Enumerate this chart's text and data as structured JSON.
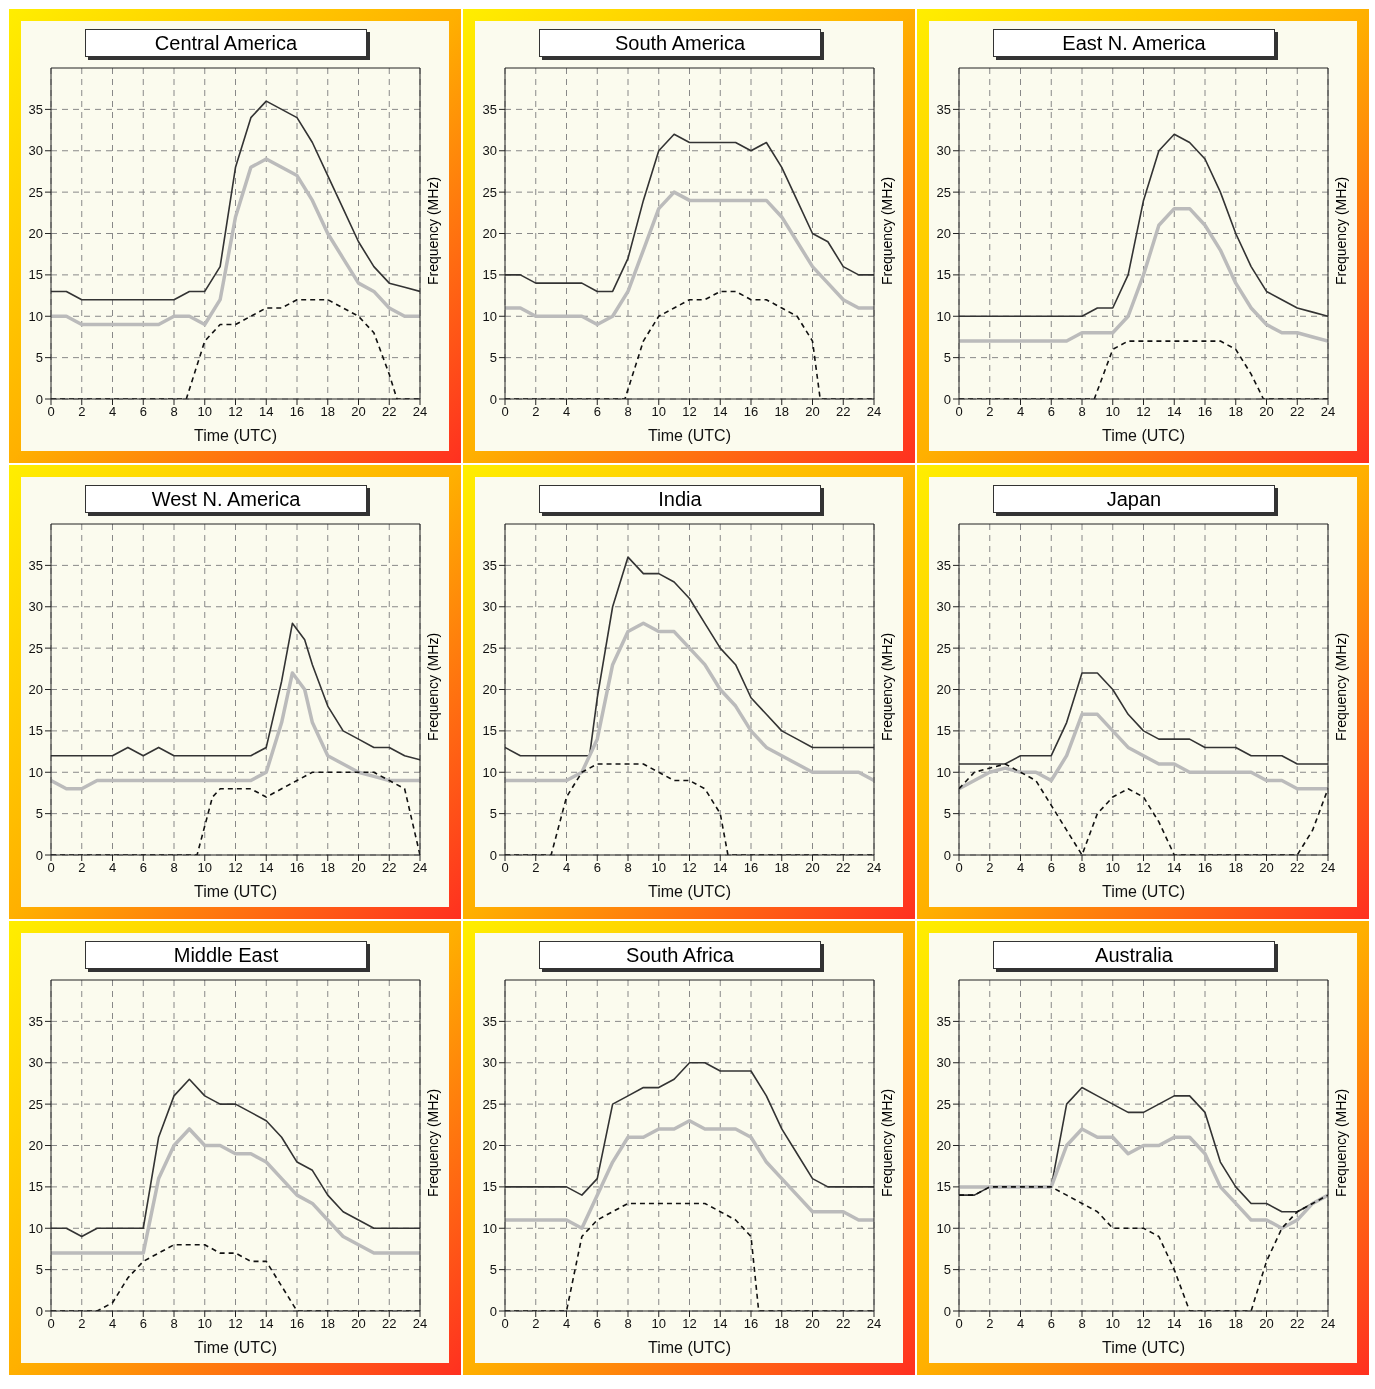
{
  "chart_data": [
    {
      "type": "line",
      "title": "Central America",
      "xlabel": "Time (UTC)",
      "ylabel": "Frequency (MHz)",
      "xlim": [
        0,
        24
      ],
      "ylim": [
        0,
        40
      ],
      "xticks": [
        0,
        2,
        4,
        6,
        8,
        10,
        12,
        14,
        16,
        18,
        20,
        22,
        24
      ],
      "yticks": [
        0,
        5,
        10,
        15,
        20,
        25,
        30,
        35
      ],
      "grid": true,
      "marker": "none",
      "series": [
        {
          "color": "#333333",
          "line_style": "solid",
          "x": [
            0,
            1,
            2,
            3,
            4,
            5,
            6,
            7,
            8,
            9,
            10,
            11,
            12,
            13,
            14,
            15,
            16,
            17,
            18,
            19,
            20,
            21,
            22,
            23,
            24
          ],
          "values": [
            13,
            13,
            12,
            12,
            12,
            12,
            12,
            12,
            12,
            13,
            13,
            16,
            28,
            34,
            36,
            35,
            34,
            31,
            27,
            23,
            19,
            16,
            14,
            13.5,
            13
          ]
        },
        {
          "color": "#bbbbbb",
          "line_style": "solid",
          "x": [
            0,
            1,
            2,
            3,
            4,
            5,
            6,
            7,
            8,
            9,
            10,
            11,
            12,
            13,
            14,
            15,
            16,
            17,
            18,
            19,
            20,
            21,
            22,
            23,
            24
          ],
          "values": [
            10,
            10,
            9,
            9,
            9,
            9,
            9,
            9,
            10,
            10,
            9,
            12,
            22,
            28,
            29,
            28,
            27,
            24,
            20,
            17,
            14,
            13,
            11,
            10,
            10
          ]
        },
        {
          "color": "#111111",
          "line_style": "dashed",
          "x": [
            0,
            8.8,
            10,
            11,
            12,
            13,
            14,
            15,
            16,
            17,
            18,
            19,
            20,
            21,
            22,
            22.5,
            24
          ],
          "values": [
            0,
            0,
            7,
            9,
            9,
            10,
            11,
            11,
            12,
            12,
            12,
            11,
            10,
            8,
            3,
            0,
            0
          ]
        }
      ]
    },
    {
      "type": "line",
      "title": "South America",
      "xlabel": "Time (UTC)",
      "ylabel": "Frequency (MHz)",
      "xlim": [
        0,
        24
      ],
      "ylim": [
        0,
        40
      ],
      "xticks": [
        0,
        2,
        4,
        6,
        8,
        10,
        12,
        14,
        16,
        18,
        20,
        22,
        24
      ],
      "yticks": [
        0,
        5,
        10,
        15,
        20,
        25,
        30,
        35
      ],
      "grid": true,
      "marker": "none",
      "series": [
        {
          "color": "#333333",
          "line_style": "solid",
          "x": [
            0,
            1,
            2,
            3,
            4,
            5,
            6,
            7,
            8,
            9,
            10,
            11,
            12,
            13,
            14,
            15,
            16,
            17,
            18,
            19,
            20,
            21,
            22,
            23,
            24
          ],
          "values": [
            15,
            15,
            14,
            14,
            14,
            14,
            13,
            13,
            17,
            24,
            30,
            32,
            31,
            31,
            31,
            31,
            30,
            31,
            28,
            24,
            20,
            19,
            16,
            15,
            15
          ]
        },
        {
          "color": "#bbbbbb",
          "line_style": "solid",
          "x": [
            0,
            1,
            2,
            3,
            4,
            5,
            6,
            7,
            8,
            9,
            10,
            11,
            12,
            13,
            14,
            15,
            16,
            17,
            18,
            19,
            20,
            21,
            22,
            23,
            24
          ],
          "values": [
            11,
            11,
            10,
            10,
            10,
            10,
            9,
            10,
            13,
            18,
            23,
            25,
            24,
            24,
            24,
            24,
            24,
            24,
            22,
            19,
            16,
            14,
            12,
            11,
            11
          ]
        },
        {
          "color": "#111111",
          "line_style": "dashed",
          "x": [
            0,
            7.8,
            9,
            10,
            11,
            12,
            13,
            14,
            15,
            16,
            17,
            18,
            19,
            20,
            20.5,
            24
          ],
          "values": [
            0,
            0,
            7,
            10,
            11,
            12,
            12,
            13,
            13,
            12,
            12,
            11,
            10,
            7,
            0,
            0
          ]
        }
      ]
    },
    {
      "type": "line",
      "title": "East N. America",
      "xlabel": "Time (UTC)",
      "ylabel": "Frequency (MHz)",
      "xlim": [
        0,
        24
      ],
      "ylim": [
        0,
        40
      ],
      "xticks": [
        0,
        2,
        4,
        6,
        8,
        10,
        12,
        14,
        16,
        18,
        20,
        22,
        24
      ],
      "yticks": [
        0,
        5,
        10,
        15,
        20,
        25,
        30,
        35
      ],
      "grid": true,
      "marker": "none",
      "series": [
        {
          "color": "#333333",
          "line_style": "solid",
          "x": [
            0,
            8,
            9,
            10,
            11,
            12,
            13,
            14,
            15,
            16,
            17,
            18,
            19,
            20,
            21,
            22,
            23,
            24
          ],
          "values": [
            10,
            10,
            11,
            11,
            15,
            24,
            30,
            32,
            31,
            29,
            25,
            20,
            16,
            13,
            12,
            11,
            10.5,
            10
          ]
        },
        {
          "color": "#bbbbbb",
          "line_style": "solid",
          "x": [
            0,
            7,
            8,
            9,
            10,
            11,
            12,
            13,
            14,
            15,
            16,
            17,
            18,
            19,
            20,
            21,
            22,
            23,
            24
          ],
          "values": [
            7,
            7,
            8,
            8,
            8,
            10,
            15,
            21,
            23,
            23,
            21,
            18,
            14,
            11,
            9,
            8,
            8,
            7.5,
            7
          ]
        },
        {
          "color": "#111111",
          "line_style": "dashed",
          "x": [
            0,
            8.8,
            10,
            11,
            17,
            18,
            19,
            19.8,
            24
          ],
          "values": [
            0,
            0,
            6,
            7,
            7,
            6,
            3,
            0,
            0
          ]
        }
      ]
    },
    {
      "type": "line",
      "title": "West N. America",
      "xlabel": "Time (UTC)",
      "ylabel": "Frequency (MHz)",
      "xlim": [
        0,
        24
      ],
      "ylim": [
        0,
        40
      ],
      "xticks": [
        0,
        2,
        4,
        6,
        8,
        10,
        12,
        14,
        16,
        18,
        20,
        22,
        24
      ],
      "yticks": [
        0,
        5,
        10,
        15,
        20,
        25,
        30,
        35
      ],
      "grid": true,
      "marker": "none",
      "series": [
        {
          "color": "#333333",
          "line_style": "solid",
          "x": [
            0,
            4,
            5,
            6,
            7,
            8,
            13,
            14,
            15,
            15.7,
            16.5,
            17,
            18,
            19,
            20,
            21,
            22,
            23,
            24
          ],
          "values": [
            12,
            12,
            13,
            12,
            13,
            12,
            12,
            13,
            21,
            28,
            26,
            23,
            18,
            15,
            14,
            13,
            13,
            12,
            11.5
          ]
        },
        {
          "color": "#bbbbbb",
          "line_style": "solid",
          "x": [
            0,
            1,
            2,
            3,
            13,
            14,
            15,
            15.7,
            16.5,
            17,
            18,
            19,
            20,
            21,
            22,
            24
          ],
          "values": [
            9,
            8,
            8,
            9,
            9,
            10,
            16,
            22,
            20,
            16,
            12,
            11,
            10,
            9.5,
            9,
            9
          ]
        },
        {
          "color": "#111111",
          "line_style": "dashed",
          "x": [
            0,
            9.5,
            10.5,
            11,
            13,
            14,
            15,
            16,
            17,
            21,
            22,
            23,
            24
          ],
          "values": [
            0,
            0,
            7,
            8,
            8,
            7,
            8,
            9,
            10,
            10,
            9,
            8,
            0
          ]
        }
      ]
    },
    {
      "type": "line",
      "title": "India",
      "xlabel": "Time (UTC)",
      "ylabel": "Frequency (MHz)",
      "xlim": [
        0,
        24
      ],
      "ylim": [
        0,
        40
      ],
      "xticks": [
        0,
        2,
        4,
        6,
        8,
        10,
        12,
        14,
        16,
        18,
        20,
        22,
        24
      ],
      "yticks": [
        0,
        5,
        10,
        15,
        20,
        25,
        30,
        35
      ],
      "grid": true,
      "marker": "none",
      "series": [
        {
          "color": "#333333",
          "line_style": "solid",
          "x": [
            0,
            1,
            5,
            5.5,
            6,
            7,
            8,
            9,
            10,
            11,
            12,
            13,
            14,
            15,
            16,
            17,
            18,
            19,
            20,
            24
          ],
          "values": [
            13,
            12,
            12,
            12,
            19,
            30,
            36,
            34,
            34,
            33,
            31,
            28,
            25,
            23,
            19,
            17,
            15,
            14,
            13,
            13
          ]
        },
        {
          "color": "#bbbbbb",
          "line_style": "solid",
          "x": [
            0,
            4,
            5,
            6,
            7,
            8,
            9,
            10,
            11,
            12,
            13,
            14,
            15,
            16,
            17,
            18,
            19,
            20,
            23,
            24
          ],
          "values": [
            9,
            9,
            10,
            14,
            23,
            27,
            28,
            27,
            27,
            25,
            23,
            20,
            18,
            15,
            13,
            12,
            11,
            10,
            10,
            9
          ]
        },
        {
          "color": "#111111",
          "line_style": "dashed",
          "x": [
            0,
            3,
            4,
            5,
            6,
            9,
            10,
            11,
            12,
            13,
            14,
            14.5,
            24
          ],
          "values": [
            0,
            0,
            7,
            10,
            11,
            11,
            10,
            9,
            9,
            8,
            5,
            0,
            0
          ]
        }
      ]
    },
    {
      "type": "line",
      "title": "Japan",
      "xlabel": "Time (UTC)",
      "ylabel": "Frequency (MHz)",
      "xlim": [
        0,
        24
      ],
      "ylim": [
        0,
        40
      ],
      "xticks": [
        0,
        2,
        4,
        6,
        8,
        10,
        12,
        14,
        16,
        18,
        20,
        22,
        24
      ],
      "yticks": [
        0,
        5,
        10,
        15,
        20,
        25,
        30,
        35
      ],
      "grid": true,
      "marker": "none",
      "series": [
        {
          "color": "#333333",
          "line_style": "solid",
          "x": [
            0,
            3,
            4,
            6,
            7,
            8,
            9,
            10,
            11,
            12,
            13,
            15,
            16,
            18,
            19,
            21,
            22,
            24
          ],
          "values": [
            11,
            11,
            12,
            12,
            16,
            22,
            22,
            20,
            17,
            15,
            14,
            14,
            13,
            13,
            12,
            12,
            11,
            11
          ]
        },
        {
          "color": "#bbbbbb",
          "line_style": "solid",
          "x": [
            0,
            1,
            2,
            3,
            4,
            5,
            6,
            7,
            8,
            9,
            10,
            11,
            12,
            13,
            14,
            15,
            19,
            20,
            21,
            22,
            24
          ],
          "values": [
            8,
            9,
            10,
            10.5,
            10,
            10,
            9,
            12,
            17,
            17,
            15,
            13,
            12,
            11,
            11,
            10,
            10,
            9,
            9,
            8,
            8
          ]
        },
        {
          "color": "#111111",
          "line_style": "dashed",
          "x": [
            0,
            1,
            3,
            4,
            5,
            6,
            7,
            8,
            9,
            10,
            11,
            12,
            13,
            14,
            22,
            23,
            24
          ],
          "values": [
            8,
            10,
            11,
            10,
            9,
            6,
            3,
            0,
            5,
            7,
            8,
            7,
            4,
            0,
            0,
            3,
            8
          ]
        }
      ]
    },
    {
      "type": "line",
      "title": "Middle East",
      "xlabel": "Time (UTC)",
      "ylabel": "Frequency (MHz)",
      "xlim": [
        0,
        24
      ],
      "ylim": [
        0,
        40
      ],
      "xticks": [
        0,
        2,
        4,
        6,
        8,
        10,
        12,
        14,
        16,
        18,
        20,
        22,
        24
      ],
      "yticks": [
        0,
        5,
        10,
        15,
        20,
        25,
        30,
        35
      ],
      "grid": true,
      "marker": "none",
      "series": [
        {
          "color": "#333333",
          "line_style": "solid",
          "x": [
            0,
            1,
            2,
            3,
            6,
            7,
            8,
            9,
            10,
            11,
            12,
            13,
            14,
            15,
            16,
            17,
            18,
            19,
            20,
            21,
            24
          ],
          "values": [
            10,
            10,
            9,
            10,
            10,
            21,
            26,
            28,
            26,
            25,
            25,
            24,
            23,
            21,
            18,
            17,
            14,
            12,
            11,
            10,
            10
          ]
        },
        {
          "color": "#bbbbbb",
          "line_style": "solid",
          "x": [
            0,
            6,
            7,
            8,
            9,
            10,
            11,
            12,
            13,
            14,
            15,
            16,
            17,
            18,
            19,
            20,
            21,
            24
          ],
          "values": [
            7,
            7,
            16,
            20,
            22,
            20,
            20,
            19,
            19,
            18,
            16,
            14,
            13,
            11,
            9,
            8,
            7,
            7
          ]
        },
        {
          "color": "#111111",
          "line_style": "dashed",
          "x": [
            0,
            3,
            4,
            5,
            6,
            7,
            8,
            10,
            11,
            12,
            13,
            14,
            15,
            16,
            24
          ],
          "values": [
            0,
            0,
            1,
            4,
            6,
            7,
            8,
            8,
            7,
            7,
            6,
            6,
            3,
            0,
            0
          ]
        }
      ]
    },
    {
      "type": "line",
      "title": "South Africa",
      "xlabel": "Time (UTC)",
      "ylabel": "Frequency (MHz)",
      "xlim": [
        0,
        24
      ],
      "ylim": [
        0,
        40
      ],
      "xticks": [
        0,
        2,
        4,
        6,
        8,
        10,
        12,
        14,
        16,
        18,
        20,
        22,
        24
      ],
      "yticks": [
        0,
        5,
        10,
        15,
        20,
        25,
        30,
        35
      ],
      "grid": true,
      "marker": "none",
      "series": [
        {
          "color": "#333333",
          "line_style": "solid",
          "x": [
            0,
            4,
            5,
            6,
            7,
            8,
            9,
            10,
            11,
            12,
            13,
            14,
            16,
            17,
            18,
            19,
            20,
            21,
            24
          ],
          "values": [
            15,
            15,
            14,
            16,
            25,
            26,
            27,
            27,
            28,
            30,
            30,
            29,
            29,
            26,
            22,
            19,
            16,
            15,
            15
          ]
        },
        {
          "color": "#bbbbbb",
          "line_style": "solid",
          "x": [
            0,
            4,
            5,
            6,
            7,
            8,
            9,
            10,
            11,
            12,
            13,
            15,
            16,
            17,
            18,
            19,
            20,
            22,
            23,
            24
          ],
          "values": [
            11,
            11,
            10,
            14,
            18,
            21,
            21,
            22,
            22,
            23,
            22,
            22,
            21,
            18,
            16,
            14,
            12,
            12,
            11,
            11
          ]
        },
        {
          "color": "#111111",
          "line_style": "dashed",
          "x": [
            0,
            4,
            5,
            6,
            7,
            8,
            13,
            14,
            15,
            16,
            16.5,
            24
          ],
          "values": [
            0,
            0,
            9,
            11,
            12,
            13,
            13,
            12,
            11,
            9,
            0,
            0
          ]
        }
      ]
    },
    {
      "type": "line",
      "title": "Australia",
      "xlabel": "Time (UTC)",
      "ylabel": "Frequency (MHz)",
      "xlim": [
        0,
        24
      ],
      "ylim": [
        0,
        40
      ],
      "xticks": [
        0,
        2,
        4,
        6,
        8,
        10,
        12,
        14,
        16,
        18,
        20,
        22,
        24
      ],
      "yticks": [
        0,
        5,
        10,
        15,
        20,
        25,
        30,
        35
      ],
      "grid": true,
      "marker": "none",
      "series": [
        {
          "color": "#333333",
          "line_style": "solid",
          "x": [
            0,
            1,
            2,
            6,
            7,
            8,
            9,
            10,
            11,
            12,
            13,
            14,
            15,
            16,
            17,
            18,
            19,
            20,
            21,
            22,
            23,
            24
          ],
          "values": [
            14,
            14,
            15,
            15,
            25,
            27,
            26,
            25,
            24,
            24,
            25,
            26,
            26,
            24,
            18,
            15,
            13,
            13,
            12,
            12,
            13,
            14
          ]
        },
        {
          "color": "#bbbbbb",
          "line_style": "solid",
          "x": [
            0,
            6,
            7,
            8,
            9,
            10,
            11,
            12,
            13,
            14,
            15,
            16,
            17,
            18,
            19,
            20,
            21,
            22,
            23,
            24
          ],
          "values": [
            15,
            15,
            20,
            22,
            21,
            21,
            19,
            20,
            20,
            21,
            21,
            19,
            15,
            13,
            11,
            11,
            10,
            11,
            13,
            14
          ]
        },
        {
          "color": "#111111",
          "line_style": "dashed",
          "x": [
            0,
            1,
            2,
            6,
            7,
            8,
            9,
            10,
            12,
            13,
            14,
            15,
            19,
            20,
            21,
            22,
            23,
            24
          ],
          "values": [
            14,
            14,
            15,
            15,
            14,
            13,
            12,
            10,
            10,
            9,
            5,
            0,
            0,
            6,
            10,
            12,
            13,
            14
          ]
        }
      ]
    }
  ]
}
